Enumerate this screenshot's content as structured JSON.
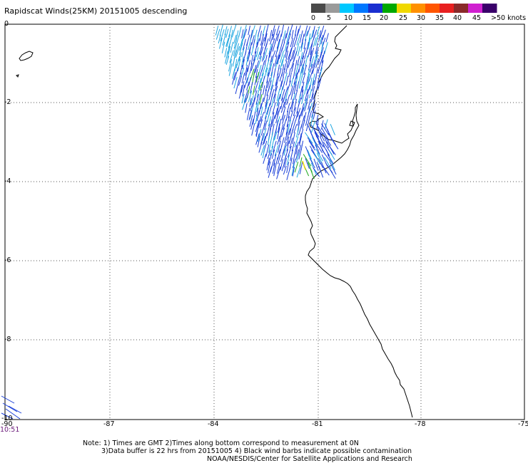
{
  "title": "Rapidscat Winds(25KM) 20151005 descending",
  "scale": {
    "labels": [
      "0",
      "5",
      "10",
      "15",
      "20",
      "25",
      "30",
      "35",
      "40",
      "45",
      ">50 knots"
    ],
    "colors": [
      "#4a4a4a",
      "#9a9a9a",
      "#00c8ff",
      "#0077ff",
      "#1a2fd0",
      "#00a800",
      "#f0d800",
      "#ff9000",
      "#ff5500",
      "#e82020",
      "#8a2a2a",
      "#d020d0",
      "#3a006a"
    ]
  },
  "lat_labels": [
    "0",
    "-2",
    "-4",
    "-6",
    "-8",
    "-10"
  ],
  "lon_labels": [
    "-90",
    "-87",
    "-84",
    "-81",
    "-78",
    "-75"
  ],
  "time_label": "10:51",
  "notes": [
    "Note: 1) Times are GMT 2)Times along bottom correspond to measurement at 0N",
    "3)Data buffer is 22 hrs from 20151005 4) Black wind barbs indicate possible contamination",
    "NOAA/NESDIS/Center for Satellite Applications and Research"
  ],
  "colors": {
    "coast": "#000000",
    "grid": "#555555",
    "wind_10_15": "#1a3fd8",
    "wind_5_10": "#1fa6e0",
    "wind_15_20": "#1aa81a",
    "wind_20_25": "#e8d000"
  }
}
